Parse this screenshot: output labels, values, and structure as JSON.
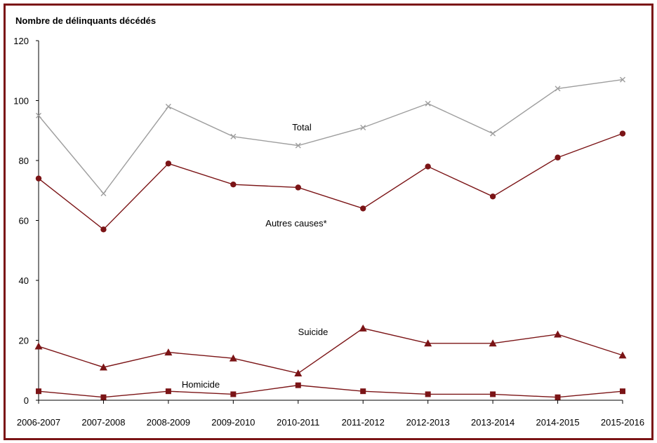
{
  "chart_data": {
    "type": "line",
    "ylabel": "Nombre de délinquants décédés",
    "ylim": [
      0,
      120
    ],
    "yticks": [
      0,
      20,
      40,
      60,
      80,
      100,
      120
    ],
    "categories": [
      "2006-2007",
      "2007-2008",
      "2008-2009",
      "2009-2010",
      "2010-2011",
      "2011-2012",
      "2012-2013",
      "2013-2014",
      "2014-2015",
      "2015-2016"
    ],
    "grid": false,
    "series": [
      {
        "name": "Total",
        "marker": "x",
        "color": "#9e9e9e",
        "values": [
          95,
          69,
          98,
          88,
          85,
          91,
          99,
          89,
          104,
          107
        ]
      },
      {
        "name": "Autres causes*",
        "marker": "circle",
        "color": "#7b1416",
        "values": [
          74,
          57,
          79,
          72,
          71,
          64,
          78,
          68,
          81,
          89
        ]
      },
      {
        "name": "Suicide",
        "marker": "triangle",
        "color": "#7b1416",
        "values": [
          18,
          11,
          16,
          14,
          9,
          24,
          19,
          19,
          22,
          15
        ]
      },
      {
        "name": "Homicide",
        "marker": "square",
        "color": "#7b1416",
        "values": [
          3,
          1,
          3,
          2,
          5,
          3,
          2,
          2,
          1,
          3
        ]
      }
    ]
  }
}
